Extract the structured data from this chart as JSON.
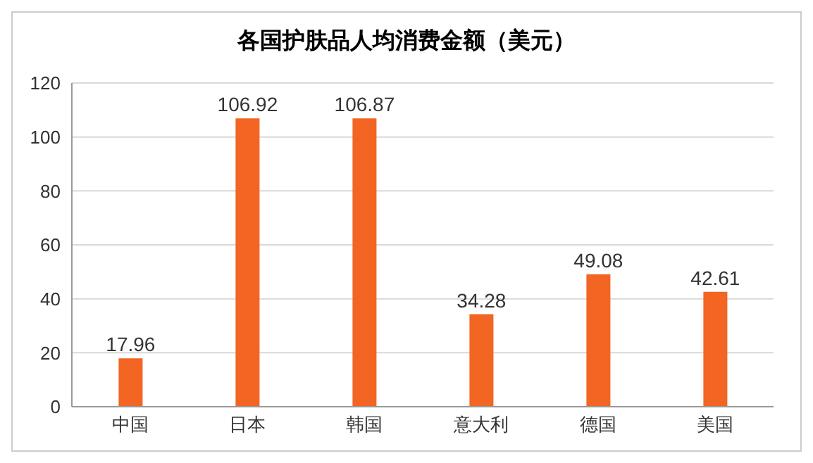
{
  "chart_data": {
    "type": "bar",
    "title": "各国护肤品人均消费金额（美元）",
    "categories": [
      "中国",
      "日本",
      "韩国",
      "意大利",
      "德国",
      "美国"
    ],
    "values": [
      17.96,
      106.92,
      106.87,
      34.28,
      49.08,
      42.61
    ],
    "color": "#f26522",
    "ylim": [
      0,
      120
    ],
    "yticks": [
      0,
      20,
      40,
      60,
      80,
      100,
      120
    ],
    "grid": "y",
    "data_labels": true
  }
}
